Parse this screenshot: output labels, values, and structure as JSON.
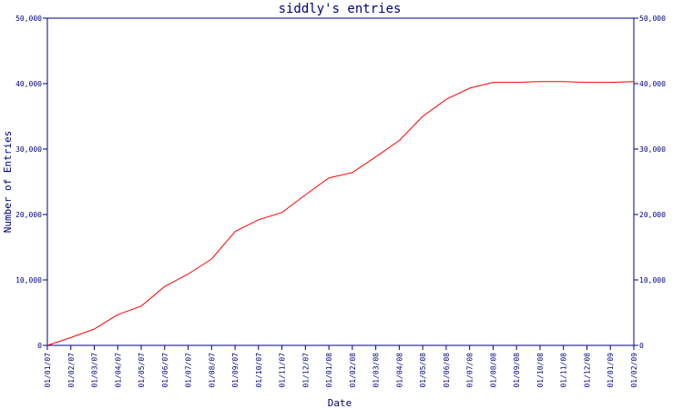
{
  "chart_data": {
    "type": "line",
    "title": "siddly's entries",
    "xlabel": "Date",
    "ylabel": "Number of Entries",
    "ylim": [
      0,
      50000
    ],
    "yticks": [
      0,
      10000,
      20000,
      30000,
      40000,
      50000
    ],
    "ytick_labels": [
      "0",
      "10,000",
      "20,000",
      "30,000",
      "40,000",
      "50,000"
    ],
    "x_tick_labels": [
      "01/01/07",
      "01/02/07",
      "01/03/07",
      "01/04/07",
      "01/05/07",
      "01/06/07",
      "01/07/07",
      "01/08/07",
      "01/09/07",
      "01/10/07",
      "01/11/07",
      "01/12/07",
      "01/01/08",
      "01/02/08",
      "01/03/08",
      "01/04/08",
      "01/05/08",
      "01/06/08",
      "01/07/08",
      "01/08/08",
      "01/09/08",
      "01/10/08",
      "01/11/08",
      "01/12/08",
      "01/01/09",
      "01/02/09"
    ],
    "grid": false,
    "right_axis": true,
    "line_color": "#ff0000",
    "axis_color": "#000080",
    "series": [
      {
        "x": [
          "01/01/07",
          "01/02/07",
          "01/03/07",
          "01/04/07",
          "01/05/07",
          "01/06/07",
          "01/07/07",
          "01/08/07",
          "01/09/07",
          "01/10/07",
          "01/11/07",
          "01/12/07",
          "01/01/08",
          "01/02/08",
          "01/03/08",
          "01/04/08",
          "01/05/08",
          "01/06/08",
          "01/07/08",
          "01/08/08",
          "01/09/08",
          "01/10/08",
          "01/11/08",
          "01/12/08",
          "01/01/09",
          "01/02/09"
        ],
        "values": [
          0,
          1200,
          2500,
          4700,
          6000,
          9000,
          10900,
          13200,
          17400,
          19200,
          20300,
          23000,
          25600,
          26400,
          28800,
          31300,
          35000,
          37600,
          39300,
          40200,
          40200,
          40300,
          40300,
          40200,
          40200,
          40300
        ]
      }
    ]
  }
}
